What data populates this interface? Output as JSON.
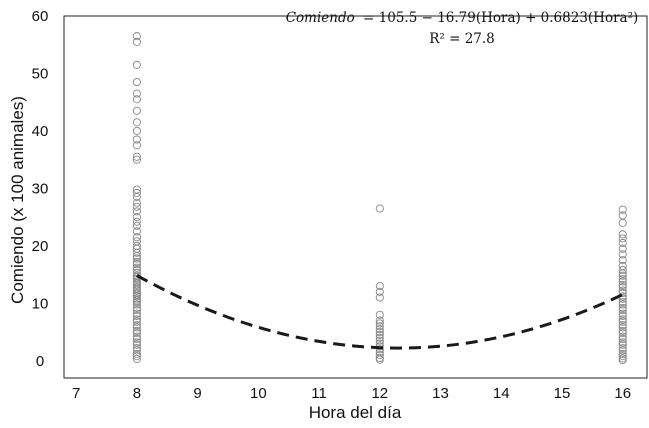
{
  "chart_data": {
    "type": "scatter",
    "xlabel": "Hora del día",
    "ylabel": "Comiendo (x 100 animales)",
    "xlim": [
      6.8,
      16.4
    ],
    "ylim": [
      -3,
      60
    ],
    "x_ticks": [
      7,
      8,
      9,
      10,
      11,
      12,
      13,
      14,
      15,
      16
    ],
    "y_ticks": [
      0,
      10,
      20,
      30,
      40,
      50,
      60
    ],
    "equation": {
      "lhs": "Comiendo",
      "rhs": "= 105.5 − 16.79(Hora) + 0.6823(Hora²)",
      "r2_label": "R² = 27.8"
    },
    "fit": {
      "intercept": 105.5,
      "linear": -16.79,
      "quadratic": 0.6823,
      "x_range": [
        8,
        16
      ],
      "style": "dashed"
    },
    "series": [
      {
        "x": [
          8,
          8,
          8,
          8,
          8,
          8,
          8,
          8,
          8,
          8,
          8,
          8,
          8,
          8,
          8,
          8,
          8,
          8,
          8,
          8,
          8,
          8,
          8,
          8,
          8,
          8,
          8,
          8,
          8,
          8,
          8,
          8,
          8,
          8,
          8,
          8,
          8,
          8,
          8,
          8,
          8,
          8,
          8,
          8,
          8,
          8,
          8,
          8,
          8,
          8,
          8,
          8,
          8,
          8,
          8,
          8,
          8,
          8,
          8,
          8,
          8,
          8,
          8,
          8,
          8,
          8,
          8,
          8,
          8,
          8
        ],
        "y": [
          56.5,
          55.5,
          51.5,
          48.5,
          46.5,
          45.5,
          43.5,
          41.5,
          40.0,
          38.5,
          37.5,
          35.5,
          35.0,
          29.8,
          29.2,
          28.5,
          27.5,
          26.8,
          26.0,
          25.0,
          24.2,
          23.5,
          22.5,
          21.5,
          20.8,
          20.0,
          19.5,
          18.8,
          18.2,
          17.8,
          17.2,
          16.8,
          16.2,
          15.8,
          15.3,
          14.8,
          14.2,
          13.8,
          13.2,
          12.8,
          12.2,
          11.8,
          11.2,
          10.8,
          10.2,
          9.8,
          9.2,
          8.8,
          8.2,
          7.8,
          7.2,
          6.8,
          6.2,
          5.8,
          5.2,
          4.8,
          4.2,
          3.8,
          3.2,
          2.8,
          2.2,
          1.8,
          1.2,
          0.8,
          0.3,
          14.5,
          13.5,
          12.5,
          11.5,
          10.5
        ]
      },
      {
        "x": [
          12,
          12,
          12,
          12,
          12,
          12,
          12,
          12,
          12,
          12,
          12,
          12,
          12,
          12,
          12,
          12,
          12,
          12,
          12,
          12
        ],
        "y": [
          26.5,
          13.0,
          12.0,
          11.0,
          8.0,
          7.0,
          6.5,
          6.0,
          5.5,
          5.0,
          4.5,
          4.0,
          3.5,
          3.0,
          2.5,
          2.0,
          1.5,
          1.0,
          0.5,
          0.2
        ]
      },
      {
        "x": [
          16,
          16,
          16,
          16,
          16,
          16,
          16,
          16,
          16,
          16,
          16,
          16,
          16,
          16,
          16,
          16,
          16,
          16,
          16,
          16,
          16,
          16,
          16,
          16,
          16,
          16,
          16,
          16,
          16,
          16,
          16,
          16,
          16,
          16,
          16,
          16,
          16,
          16,
          16,
          16,
          16,
          16,
          16
        ],
        "y": [
          26.3,
          25.3,
          24.0,
          22.0,
          21.3,
          20.5,
          19.5,
          18.5,
          17.5,
          16.5,
          15.8,
          15.2,
          14.8,
          14.2,
          13.8,
          13.2,
          12.8,
          12.2,
          11.8,
          11.2,
          10.8,
          10.2,
          9.8,
          9.2,
          8.8,
          8.2,
          7.8,
          7.2,
          6.8,
          6.2,
          5.8,
          5.2,
          4.8,
          4.2,
          3.8,
          3.2,
          2.8,
          2.2,
          1.8,
          1.2,
          0.8,
          0.4,
          0.1
        ]
      }
    ]
  }
}
